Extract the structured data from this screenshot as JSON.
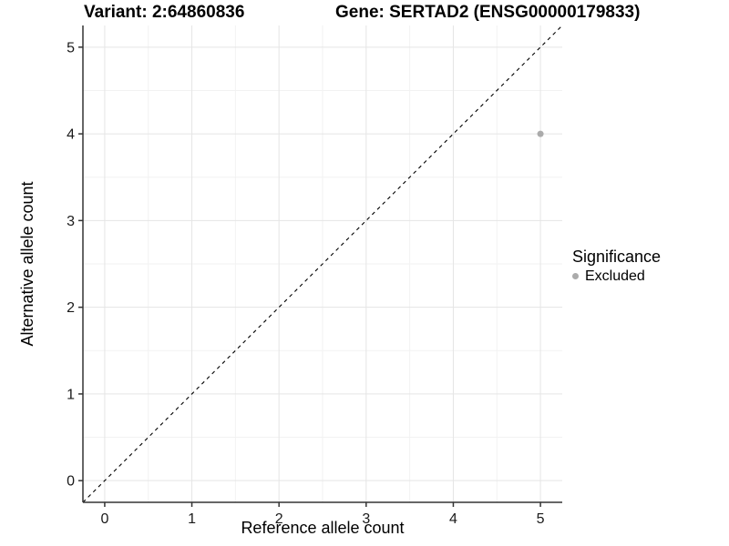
{
  "header": {
    "title_left": "Variant: 2:64860836",
    "title_right": "Gene: SERTAD2 (ENSG00000179833)"
  },
  "chart_data": {
    "type": "scatter",
    "title": "Variant: 2:64860836   Gene: SERTAD2 (ENSG00000179833)",
    "xlabel": "Reference allele count",
    "ylabel": "Alternative allele count",
    "xlim": [
      -0.25,
      5.25
    ],
    "ylim": [
      -0.25,
      5.25
    ],
    "x_ticks": [
      0,
      1,
      2,
      3,
      4,
      5
    ],
    "y_ticks": [
      0,
      1,
      2,
      3,
      4,
      5
    ],
    "grid": "major+minor",
    "reference_line": {
      "type": "identity y=x",
      "style": "dashed",
      "color": "#000000"
    },
    "series": [
      {
        "name": "Excluded",
        "color": "#ababab",
        "points": [
          {
            "x": 5,
            "y": 4
          }
        ]
      }
    ],
    "legend": {
      "title": "Significance",
      "position": "right",
      "items": [
        {
          "label": "Excluded",
          "color": "#ababab"
        }
      ]
    },
    "colors": {
      "grid_major": "#e5e5e5",
      "grid_minor": "#f2f2f2",
      "axis_line": "#333333",
      "tick_label": "#1a1a1a"
    }
  }
}
